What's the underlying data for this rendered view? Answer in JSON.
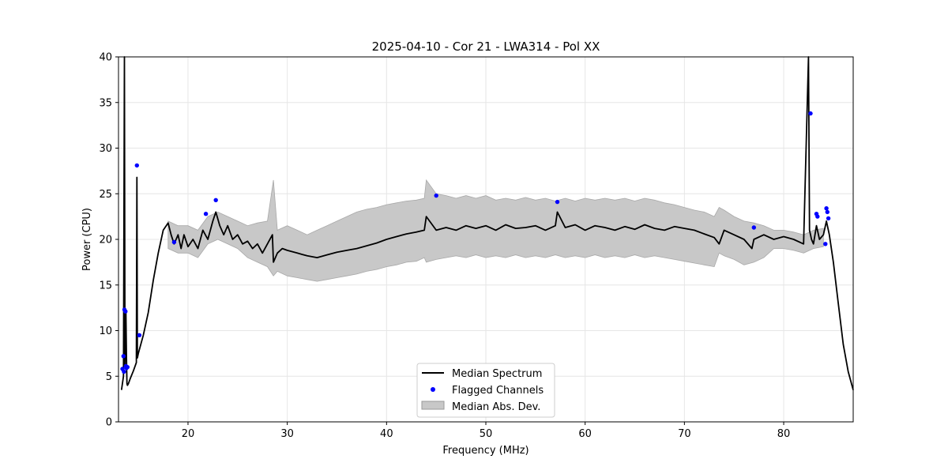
{
  "chart_data": {
    "type": "line",
    "title": "2025-04-10 - Cor 21 - LWA314 - Pol XX",
    "xlabel": "Frequency (MHz)",
    "ylabel": "Power (CPU)",
    "xlim": [
      13.0,
      87.0
    ],
    "ylim": [
      0,
      40
    ],
    "xticks": [
      20,
      30,
      40,
      50,
      60,
      70,
      80
    ],
    "yticks": [
      0,
      5,
      10,
      15,
      20,
      25,
      30,
      35,
      40
    ],
    "grid": true,
    "legend_position": "lower-center",
    "series": [
      {
        "name": "Median Spectrum",
        "type": "line",
        "color": "#000000",
        "x": [
          13.3,
          13.5,
          13.6,
          13.65,
          13.7,
          13.75,
          13.8,
          13.85,
          13.9,
          14.0,
          14.2,
          14.5,
          14.8,
          14.85,
          14.9,
          15.0,
          15.5,
          16.0,
          16.5,
          17.0,
          17.5,
          18.0,
          18.3,
          18.6,
          19.0,
          19.3,
          19.6,
          20.0,
          20.5,
          21.0,
          21.5,
          22.0,
          22.5,
          22.8,
          23.2,
          23.6,
          24.0,
          24.5,
          25.0,
          25.5,
          26.0,
          26.5,
          27.0,
          27.5,
          28.0,
          28.5,
          28.6,
          29.0,
          29.5,
          30.0,
          31.0,
          32.0,
          33.0,
          34.0,
          35.0,
          36.0,
          37.0,
          38.0,
          39.0,
          40.0,
          41.0,
          42.0,
          43.0,
          43.8,
          44.0,
          45.0,
          46.0,
          47.0,
          48.0,
          49.0,
          50.0,
          51.0,
          52.0,
          53.0,
          54.0,
          55.0,
          56.0,
          57.0,
          57.2,
          58.0,
          59.0,
          60.0,
          61.0,
          62.0,
          63.0,
          64.0,
          65.0,
          66.0,
          67.0,
          68.0,
          69.0,
          70.0,
          71.0,
          72.0,
          73.0,
          73.5,
          74.0,
          75.0,
          76.0,
          76.8,
          77.0,
          78.0,
          79.0,
          80.0,
          81.0,
          82.0,
          82.5,
          82.6,
          82.7,
          82.8,
          83.0,
          83.3,
          83.6,
          84.0,
          84.3,
          84.6,
          85.0,
          85.5,
          86.0,
          86.5,
          87.0
        ],
        "y": [
          3.5,
          5.0,
          40.0,
          6.0,
          11.5,
          12.0,
          7.0,
          4.2,
          4.0,
          4.2,
          4.8,
          5.6,
          6.5,
          26.8,
          7.0,
          7.5,
          9.5,
          12.0,
          15.5,
          18.5,
          21.0,
          21.8,
          20.5,
          19.5,
          20.5,
          19.0,
          20.5,
          19.2,
          20.0,
          19.0,
          21.0,
          20.0,
          22.0,
          23.0,
          21.5,
          20.5,
          21.5,
          20.0,
          20.5,
          19.5,
          19.8,
          19.0,
          19.5,
          18.5,
          19.5,
          20.5,
          17.5,
          18.5,
          19.0,
          18.8,
          18.5,
          18.2,
          18.0,
          18.3,
          18.6,
          18.8,
          19.0,
          19.3,
          19.6,
          20.0,
          20.3,
          20.6,
          20.8,
          21.0,
          22.5,
          21.0,
          21.3,
          21.0,
          21.5,
          21.2,
          21.5,
          21.0,
          21.6,
          21.2,
          21.3,
          21.5,
          21.0,
          21.5,
          23.0,
          21.3,
          21.6,
          21.0,
          21.5,
          21.3,
          21.0,
          21.4,
          21.1,
          21.6,
          21.2,
          21.0,
          21.4,
          21.2,
          21.0,
          20.6,
          20.2,
          19.5,
          21.0,
          20.5,
          20.0,
          19.0,
          20.0,
          20.5,
          20.0,
          20.3,
          20.0,
          19.5,
          40.0,
          21.0,
          20.5,
          20.0,
          19.5,
          21.5,
          20.0,
          20.5,
          22.0,
          20.5,
          17.5,
          13.0,
          8.5,
          5.5,
          3.5
        ]
      },
      {
        "name": "Flagged Channels",
        "type": "scatter",
        "color": "#0000ff",
        "x": [
          13.4,
          13.5,
          13.6,
          13.7,
          13.8,
          13.9,
          13.55,
          13.75,
          14.85,
          15.1,
          18.6,
          21.8,
          22.8,
          45.0,
          57.2,
          77.0,
          82.7,
          83.3,
          83.4,
          84.2,
          84.3,
          84.4,
          84.5
        ],
        "y": [
          5.8,
          7.2,
          12.3,
          12.1,
          5.9,
          6.0,
          5.5,
          6.1,
          28.1,
          9.5,
          19.7,
          22.8,
          24.3,
          24.8,
          24.1,
          21.3,
          33.8,
          22.8,
          22.5,
          19.5,
          23.4,
          23.0,
          22.3
        ]
      },
      {
        "name": "Median Abs. Dev.",
        "type": "band",
        "color": "#c8c8c8",
        "x": [
          18.0,
          19.0,
          20.0,
          21.0,
          22.0,
          23.0,
          24.0,
          25.0,
          26.0,
          27.0,
          28.0,
          28.6,
          29.0,
          30.0,
          31.0,
          32.0,
          33.0,
          34.0,
          35.0,
          36.0,
          37.0,
          38.0,
          39.0,
          40.0,
          41.0,
          42.0,
          43.0,
          43.8,
          44.0,
          45.0,
          46.0,
          47.0,
          48.0,
          49.0,
          50.0,
          51.0,
          52.0,
          53.0,
          54.0,
          55.0,
          56.0,
          57.0,
          58.0,
          59.0,
          60.0,
          61.0,
          62.0,
          63.0,
          64.0,
          65.0,
          66.0,
          67.0,
          68.0,
          69.0,
          70.0,
          71.0,
          72.0,
          73.0,
          73.5,
          74.0,
          75.0,
          76.0,
          77.0,
          78.0,
          79.0,
          80.0,
          81.0,
          82.0,
          83.0,
          84.0
        ],
        "lower": [
          19.0,
          18.5,
          18.5,
          18.0,
          19.5,
          20.0,
          19.5,
          19.0,
          18.0,
          17.5,
          17.0,
          16.0,
          16.5,
          16.0,
          15.8,
          15.6,
          15.4,
          15.6,
          15.8,
          16.0,
          16.2,
          16.5,
          16.7,
          17.0,
          17.2,
          17.5,
          17.6,
          18.0,
          17.5,
          17.8,
          18.0,
          18.2,
          18.0,
          18.3,
          18.0,
          18.2,
          18.0,
          18.3,
          18.0,
          18.2,
          18.0,
          18.3,
          18.0,
          18.2,
          18.0,
          18.3,
          18.0,
          18.2,
          18.0,
          18.3,
          18.0,
          18.2,
          18.0,
          17.8,
          17.6,
          17.4,
          17.2,
          17.0,
          18.5,
          18.2,
          17.8,
          17.2,
          17.5,
          18.0,
          19.0,
          19.0,
          18.8,
          18.5,
          19.0,
          19.2
        ],
        "upper": [
          22.0,
          21.5,
          21.5,
          21.0,
          22.5,
          23.0,
          22.5,
          22.0,
          21.5,
          21.8,
          22.0,
          26.5,
          21.0,
          21.5,
          21.0,
          20.5,
          21.0,
          21.5,
          22.0,
          22.5,
          23.0,
          23.3,
          23.5,
          23.8,
          24.0,
          24.2,
          24.3,
          24.5,
          26.5,
          25.0,
          24.8,
          24.5,
          24.8,
          24.5,
          24.8,
          24.3,
          24.5,
          24.3,
          24.6,
          24.3,
          24.5,
          24.2,
          24.5,
          24.2,
          24.5,
          24.3,
          24.5,
          24.3,
          24.5,
          24.2,
          24.5,
          24.3,
          24.0,
          23.8,
          23.5,
          23.2,
          23.0,
          22.5,
          23.5,
          23.2,
          22.5,
          22.0,
          21.8,
          21.5,
          21.0,
          21.0,
          20.8,
          20.5,
          21.0,
          21.2
        ]
      }
    ]
  }
}
